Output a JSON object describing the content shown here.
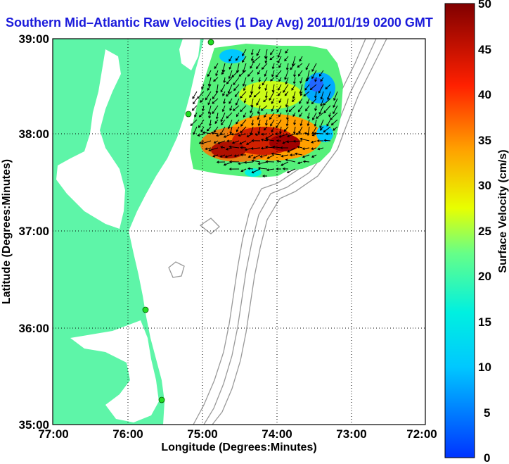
{
  "title": "Southern Mid–Atlantic Raw Velocities (1 Day Avg) 2011/01/19 0200 GMT",
  "xlabel": "Longitude (Degrees:Minutes)",
  "ylabel": "Latitude (Degrees:Minutes)",
  "colorbar_label": "Surface Velocity (cm/s)",
  "x_ticks": [
    "77:00",
    "76:00",
    "75:00",
    "74:00",
    "73:00",
    "72:00"
  ],
  "y_ticks": [
    "39:00",
    "38:00",
    "37:00",
    "36:00",
    "35:00"
  ],
  "colorbar_ticks": [
    "50",
    "45",
    "40",
    "35",
    "30",
    "25",
    "20",
    "15",
    "10",
    "5",
    "0"
  ],
  "colorbar_range": [
    0,
    50
  ],
  "colors": {
    "land": "#5ef5a8",
    "title": "#1a1adb",
    "station": "#22dd22",
    "bathymetry": "#999999"
  },
  "grid": "dotted",
  "stations": 4
}
